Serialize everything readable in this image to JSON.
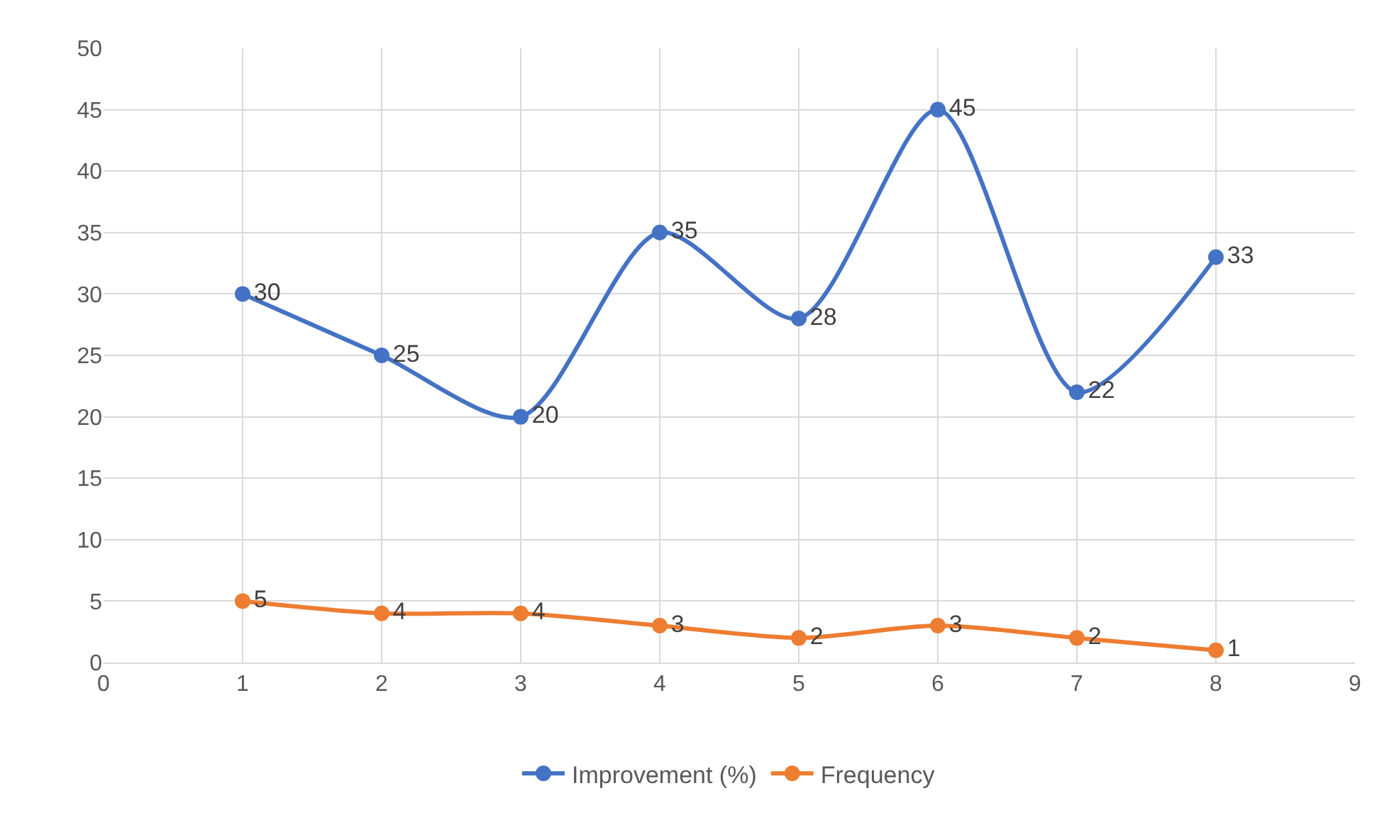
{
  "chart_data": {
    "type": "line",
    "x": [
      1,
      2,
      3,
      4,
      5,
      6,
      7,
      8
    ],
    "series": [
      {
        "name": "Improvement (%)",
        "color": "#4472c4",
        "values": [
          30,
          25,
          20,
          35,
          28,
          45,
          22,
          33
        ]
      },
      {
        "name": "Frequency",
        "color": "#ed7d31",
        "values": [
          5,
          4,
          4,
          3,
          2,
          3,
          2,
          1
        ]
      }
    ],
    "xlim": [
      0,
      9
    ],
    "xticks": [
      0,
      1,
      2,
      3,
      4,
      5,
      6,
      7,
      8,
      9
    ],
    "ylim": [
      0,
      50
    ],
    "yticks": [
      0,
      5,
      10,
      15,
      20,
      25,
      30,
      35,
      40,
      45,
      50
    ],
    "grid": true,
    "legend": "bottom",
    "marker": "circle",
    "line_style": "solid",
    "data_labels": true
  }
}
